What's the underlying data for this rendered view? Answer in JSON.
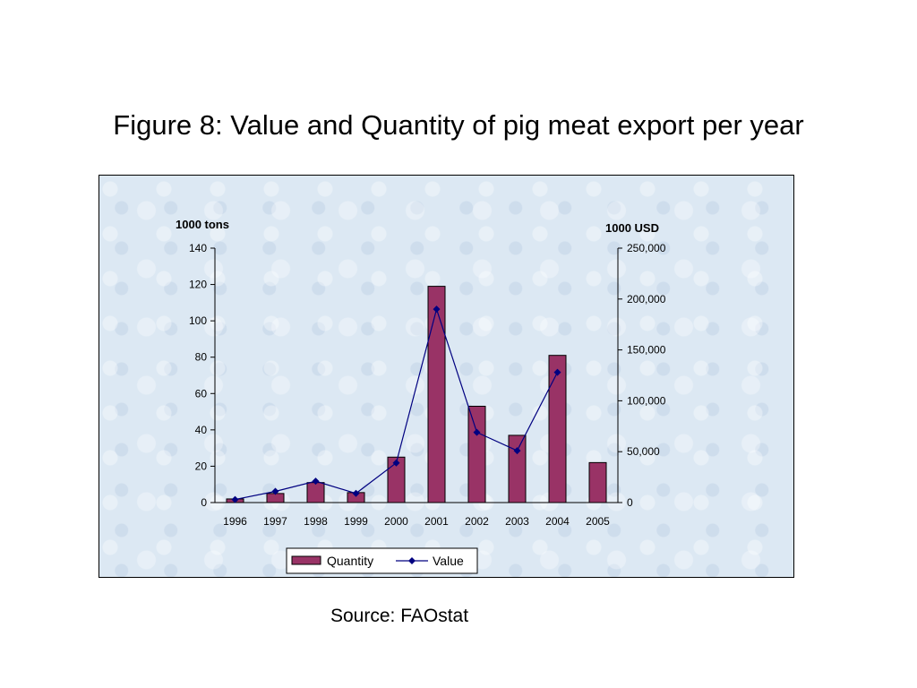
{
  "slide": {
    "title": "Figure 8: Value and Quantity of pig meat export per year",
    "source": "Source: FAOstat"
  },
  "colors": {
    "bar": "#993366",
    "line": "#000080",
    "frame_bg": "#dce8f3"
  },
  "chart_data": {
    "type": "bar",
    "categories": [
      "1996",
      "1997",
      "1998",
      "1999",
      "2000",
      "2001",
      "2002",
      "2003",
      "2004",
      "2005"
    ],
    "series": [
      {
        "name": "Quantity",
        "type": "bar",
        "axis": "left",
        "values": [
          2,
          5,
          11,
          5.5,
          25,
          119,
          53,
          37,
          81,
          22
        ]
      },
      {
        "name": "Value",
        "type": "line",
        "axis": "right",
        "values": [
          3000,
          11000,
          21000,
          9000,
          39000,
          190000,
          69000,
          51000,
          128000,
          null
        ]
      }
    ],
    "y_left": {
      "label": "1000 tons",
      "ylim": [
        0,
        140
      ],
      "ticks": [
        "0",
        "20",
        "40",
        "60",
        "80",
        "100",
        "120",
        "140"
      ]
    },
    "y_right": {
      "label": "1000 USD",
      "ylim": [
        0,
        250000
      ],
      "ticks": [
        "0",
        "50,000",
        "100,000",
        "150,000",
        "200,000",
        "250,000"
      ]
    },
    "legend": {
      "position": "bottom",
      "items": [
        "Quantity",
        "Value"
      ]
    },
    "grid": false
  }
}
